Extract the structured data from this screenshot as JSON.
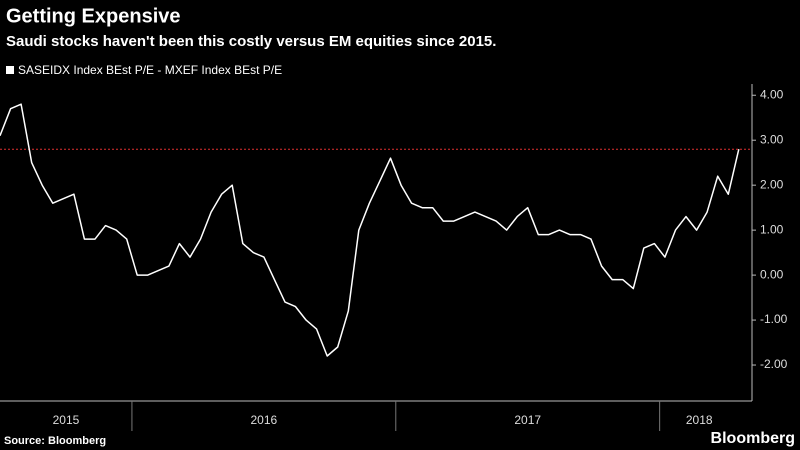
{
  "chart_data": {
    "type": "line",
    "title": "Getting Expensive",
    "subtitle": "Saudi stocks haven't been this costly versus EM equities since 2015.",
    "source": "Source: Bloomberg",
    "brand": "Bloomberg",
    "x": [
      2015.5,
      2015.54,
      2015.58,
      2015.62,
      2015.66,
      2015.7,
      2015.74,
      2015.78,
      2015.82,
      2015.86,
      2015.9,
      2015.94,
      2015.98,
      2016.02,
      2016.06,
      2016.1,
      2016.14,
      2016.18,
      2016.22,
      2016.26,
      2016.3,
      2016.34,
      2016.38,
      2016.42,
      2016.46,
      2016.5,
      2016.54,
      2016.58,
      2016.62,
      2016.66,
      2016.7,
      2016.74,
      2016.78,
      2016.82,
      2016.86,
      2016.9,
      2016.94,
      2016.98,
      2017.02,
      2017.06,
      2017.1,
      2017.14,
      2017.18,
      2017.22,
      2017.26,
      2017.3,
      2017.34,
      2017.38,
      2017.42,
      2017.46,
      2017.5,
      2017.54,
      2017.58,
      2017.62,
      2017.66,
      2017.7,
      2017.74,
      2017.78,
      2017.82,
      2017.86,
      2017.9,
      2017.94,
      2017.98,
      2018.02,
      2018.06,
      2018.1,
      2018.14,
      2018.18,
      2018.22,
      2018.26,
      2018.3
    ],
    "series": [
      {
        "name": "SASEIDX Index BEst P/E - MXEF Index BEst P/E",
        "color": "#ffffff",
        "values": [
          3.1,
          3.7,
          3.8,
          2.5,
          2.0,
          1.6,
          1.7,
          1.8,
          0.8,
          0.8,
          1.1,
          1.0,
          0.8,
          0.0,
          0.0,
          0.1,
          0.2,
          0.7,
          0.4,
          0.8,
          1.4,
          1.8,
          2.0,
          0.7,
          0.5,
          0.4,
          -0.1,
          -0.6,
          -0.7,
          -1.0,
          -1.2,
          -1.8,
          -1.6,
          -0.8,
          1.0,
          1.6,
          2.1,
          2.6,
          2.0,
          1.6,
          1.5,
          1.5,
          1.2,
          1.2,
          1.3,
          1.4,
          1.3,
          1.2,
          1.0,
          1.3,
          1.5,
          0.9,
          0.9,
          1.0,
          0.9,
          0.9,
          0.8,
          0.2,
          -0.1,
          -0.1,
          -0.3,
          0.6,
          0.7,
          0.4,
          1.0,
          1.3,
          1.0,
          1.4,
          2.2,
          1.8,
          2.8
        ]
      }
    ],
    "reference_line": {
      "value": 2.8,
      "color": "#e03030"
    },
    "xlim": [
      2015.5,
      2018.35
    ],
    "xticks": [
      {
        "value": 2015.75,
        "label": "2015"
      },
      {
        "value": 2016.5,
        "label": "2016"
      },
      {
        "value": 2017.5,
        "label": "2017"
      },
      {
        "value": 2018.15,
        "label": "2018"
      }
    ],
    "ylim": [
      -2.8,
      4.25
    ],
    "yticks": [
      {
        "value": 4,
        "label": "4.00"
      },
      {
        "value": 3,
        "label": "3.00"
      },
      {
        "value": 2,
        "label": "2.00"
      },
      {
        "value": 1,
        "label": "1.00"
      },
      {
        "value": 0,
        "label": "0.00"
      },
      {
        "value": -1,
        "label": "-1.00"
      },
      {
        "value": -2,
        "label": "-2.00"
      }
    ]
  }
}
